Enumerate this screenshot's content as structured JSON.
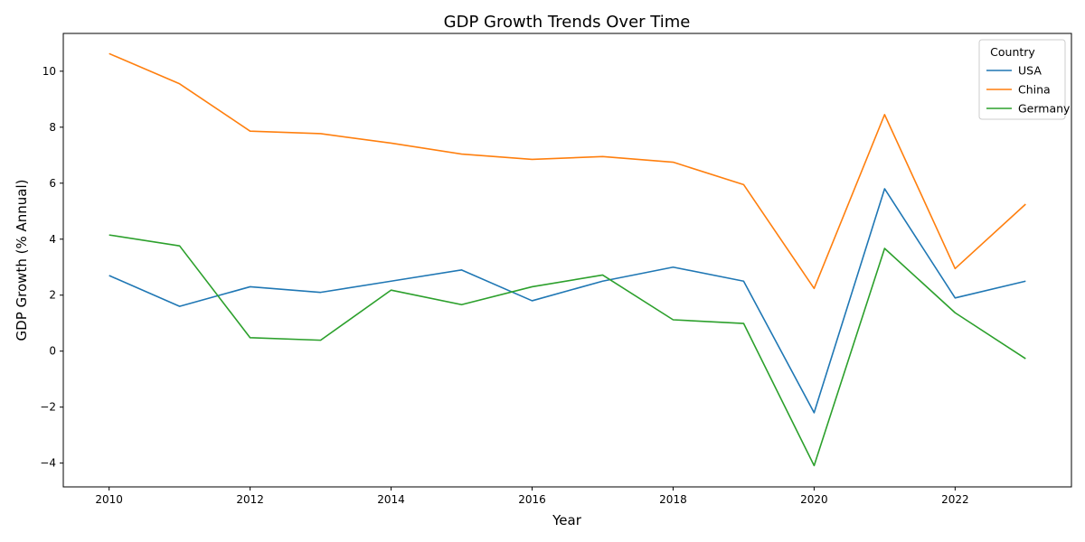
{
  "chart_data": {
    "type": "line",
    "title": "GDP Growth Trends Over Time",
    "xlabel": "Year",
    "ylabel": "GDP Growth (% Annual)",
    "x": [
      2010,
      2011,
      2012,
      2013,
      2014,
      2015,
      2016,
      2017,
      2018,
      2019,
      2020,
      2021,
      2022,
      2023
    ],
    "xlim": [
      2009.35,
      2023.65
    ],
    "ylim": [
      -4.85,
      11.35
    ],
    "xticks": [
      2010,
      2012,
      2014,
      2016,
      2018,
      2020,
      2022
    ],
    "yticks": [
      -4,
      -2,
      0,
      2,
      4,
      6,
      8,
      10
    ],
    "ytick_labels": [
      "−4",
      "−2",
      "0",
      "2",
      "4",
      "6",
      "8",
      "10"
    ],
    "grid": false,
    "legend": {
      "title": "Country",
      "placement": "top-right"
    },
    "series": [
      {
        "name": "USA",
        "color": "#1f77b4",
        "values": [
          2.7,
          1.6,
          2.3,
          2.1,
          2.5,
          2.9,
          1.8,
          2.5,
          3.0,
          2.5,
          -2.2,
          5.8,
          1.9,
          2.5
        ]
      },
      {
        "name": "China",
        "color": "#ff7f0e",
        "values": [
          10.63,
          9.55,
          7.86,
          7.77,
          7.43,
          7.04,
          6.85,
          6.95,
          6.75,
          5.95,
          2.24,
          8.45,
          2.95,
          5.25
        ]
      },
      {
        "name": "Germany",
        "color": "#2ca02c",
        "values": [
          4.15,
          3.76,
          0.48,
          0.39,
          2.18,
          1.66,
          2.3,
          2.72,
          1.12,
          0.99,
          -4.09,
          3.67,
          1.37,
          -0.27
        ]
      }
    ]
  }
}
